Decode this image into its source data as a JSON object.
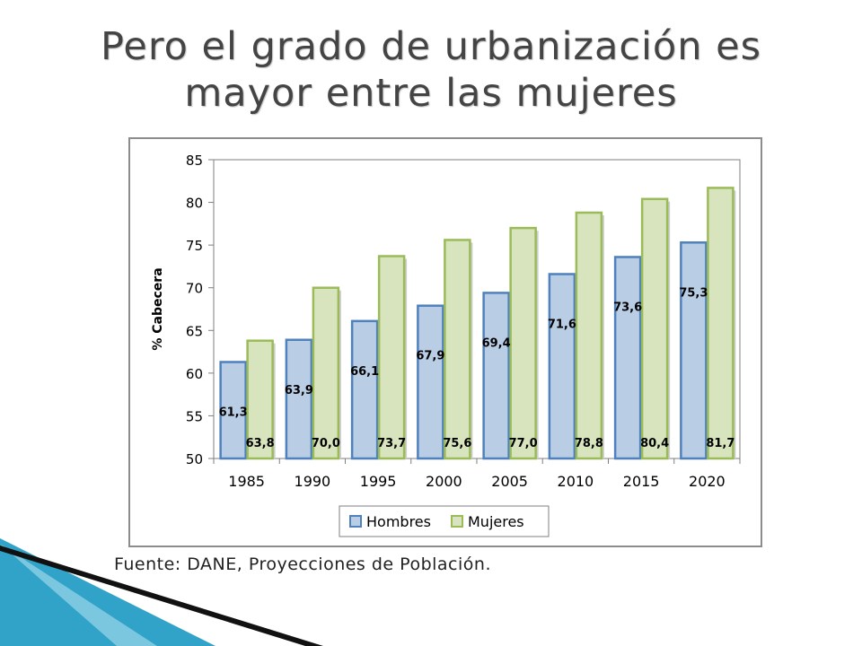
{
  "slide": {
    "title_line1": "Pero el grado de urbanización es",
    "title_line2": "mayor entre las mujeres",
    "source": "Fuente: DANE, Proyecciones de Población."
  },
  "colors": {
    "hombres_fill": "#b9cde5",
    "hombres_stroke": "#4f81bd",
    "mujeres_fill": "#d7e4bd",
    "mujeres_stroke": "#9bbb59",
    "title": "#444444",
    "deco_blue": "#31a3c8"
  },
  "chart_data": {
    "type": "bar",
    "categories": [
      "1985",
      "1990",
      "1995",
      "2000",
      "2005",
      "2010",
      "2015",
      "2020"
    ],
    "series": [
      {
        "name": "Hombres",
        "values": [
          61.3,
          63.9,
          66.1,
          67.9,
          69.4,
          71.6,
          73.6,
          75.3
        ],
        "labels": [
          "61,3",
          "63,9",
          "66,1",
          "67,9",
          "69,4",
          "71,6",
          "73,6",
          "75,3"
        ]
      },
      {
        "name": "Mujeres",
        "values": [
          63.8,
          70.0,
          73.7,
          75.6,
          77.0,
          78.8,
          80.4,
          81.7
        ],
        "labels": [
          "63,8",
          "70,0",
          "73,7",
          "75,6",
          "77,0",
          "78,8",
          "80,4",
          "81,7"
        ]
      }
    ],
    "ylabel": "% Cabecera",
    "xlabel": "",
    "ylim": [
      50,
      85
    ],
    "yticks": [
      "50",
      "55",
      "60",
      "65",
      "70",
      "75",
      "80",
      "85"
    ],
    "grid": false,
    "legend": "bottom"
  }
}
